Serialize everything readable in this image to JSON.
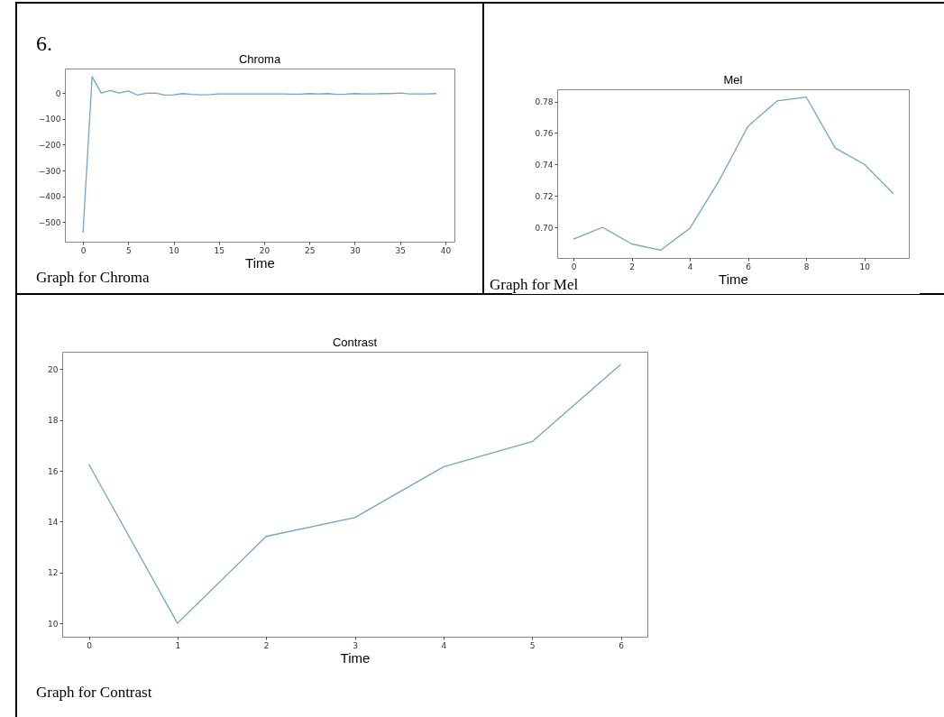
{
  "chart_data": [
    {
      "type": "line",
      "title": "Chroma",
      "xlabel": "Time",
      "annotations": [
        "6.",
        "Graph for Chroma"
      ],
      "x": [
        0,
        1,
        2,
        3,
        4,
        5,
        6,
        7,
        8,
        9,
        10,
        11,
        12,
        13,
        14,
        15,
        16,
        17,
        18,
        19,
        20,
        21,
        22,
        23,
        24,
        25,
        26,
        27,
        28,
        29,
        30,
        31,
        32,
        33,
        34,
        35,
        36,
        37,
        38,
        39
      ],
      "series": [
        {
          "color": "#6fa8c4",
          "values": [
            -541,
            64,
            0,
            10,
            0,
            8,
            -8,
            -1,
            0,
            -8,
            -7,
            -2,
            -5,
            -7,
            -6,
            -3,
            -3,
            -3,
            -3,
            -3,
            -3,
            -3,
            -3,
            -4,
            -4,
            -2,
            -3,
            -2,
            -5,
            -4,
            -2,
            -3,
            -3,
            -2,
            -2,
            0,
            -3,
            -3,
            -3,
            -2
          ]
        }
      ],
      "xlim": [
        -2,
        41
      ],
      "ylim": [
        -576,
        95
      ],
      "xticks": [
        0,
        5,
        10,
        15,
        20,
        25,
        30,
        35,
        40
      ],
      "yticks": [
        0,
        {
          "value": -100,
          "label": "−100"
        },
        {
          "value": -200,
          "label": "−200"
        },
        {
          "value": -300,
          "label": "−300"
        },
        {
          "value": -400,
          "label": "−400"
        },
        {
          "value": -500,
          "label": "−500"
        }
      ]
    },
    {
      "type": "line",
      "title": "Mel",
      "xlabel": "Time",
      "annotations": [
        "Graph for Mel"
      ],
      "x": [
        0,
        1,
        2,
        3,
        4,
        5,
        6,
        7,
        8,
        9,
        10,
        11
      ],
      "series": [
        {
          "color": "#6fa8c4",
          "values": [
            0.6925,
            0.7,
            0.6894,
            0.6855,
            0.6994,
            0.7295,
            0.7643,
            0.7804,
            0.7829,
            0.7504,
            0.74,
            0.7214
          ]
        }
      ],
      "xlim": [
        -0.56,
        11.53
      ],
      "ylim": [
        0.6805,
        0.7878
      ],
      "xticks": [
        0,
        2,
        4,
        6,
        8,
        10
      ],
      "yticks": [
        {
          "value": 0.7,
          "label": "0.70"
        },
        {
          "value": 0.72,
          "label": "0.72"
        },
        {
          "value": 0.74,
          "label": "0.74"
        },
        {
          "value": 0.76,
          "label": "0.76"
        },
        {
          "value": 0.78,
          "label": "0.78"
        }
      ]
    },
    {
      "type": "line",
      "title": "Contrast",
      "xlabel": "Time",
      "annotations": [
        "Graph for Contrast"
      ],
      "x": [
        0,
        1,
        2,
        3,
        4,
        5,
        6
      ],
      "series": [
        {
          "color": "#6fa8c4",
          "values": [
            16.26,
            10.0,
            13.42,
            14.16,
            16.16,
            17.15,
            20.19
          ]
        }
      ],
      "xlim": [
        -0.3,
        6.3
      ],
      "ylim": [
        9.47,
        20.69
      ],
      "xticks": [
        0,
        1,
        2,
        3,
        4,
        5,
        6
      ],
      "yticks": [
        10,
        12,
        14,
        16,
        18,
        20
      ]
    }
  ]
}
